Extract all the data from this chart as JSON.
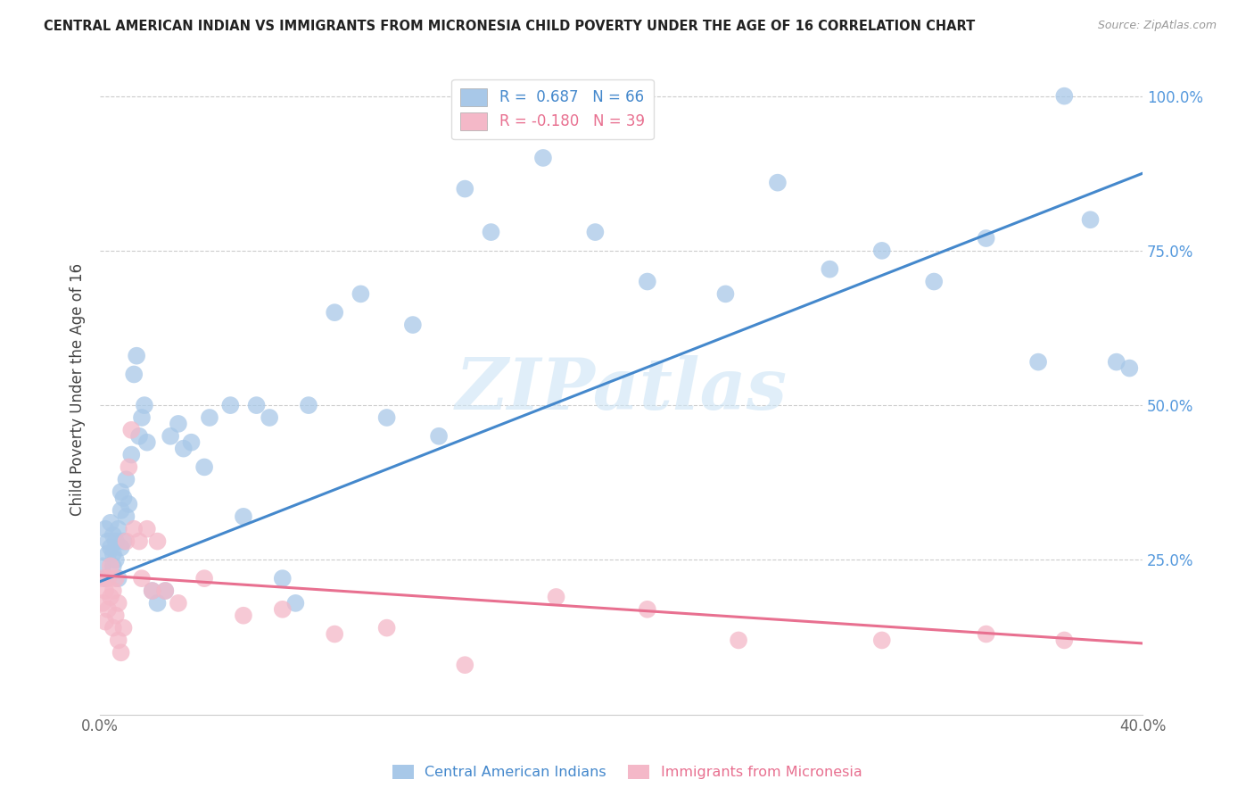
{
  "title": "CENTRAL AMERICAN INDIAN VS IMMIGRANTS FROM MICRONESIA CHILD POVERTY UNDER THE AGE OF 16 CORRELATION CHART",
  "source": "Source: ZipAtlas.com",
  "ylabel": "Child Poverty Under the Age of 16",
  "xlim": [
    0.0,
    0.4
  ],
  "ylim": [
    0.0,
    1.05
  ],
  "xticks": [
    0.0,
    0.1,
    0.2,
    0.3,
    0.4
  ],
  "xticklabels": [
    "0.0%",
    "",
    "",
    "",
    "40.0%"
  ],
  "ytick_positions": [
    0.0,
    0.25,
    0.5,
    0.75,
    1.0
  ],
  "yticklabels_right": [
    "",
    "25.0%",
    "50.0%",
    "75.0%",
    "100.0%"
  ],
  "R_blue": "0.687",
  "N_blue": 66,
  "R_pink": "-0.180",
  "N_pink": 39,
  "legend_label_blue": "Central American Indians",
  "legend_label_pink": "Immigrants from Micronesia",
  "blue_color": "#a8c8e8",
  "pink_color": "#f4b8c8",
  "blue_line_color": "#4488cc",
  "pink_line_color": "#e87090",
  "watermark": "ZIPatlas",
  "background_color": "#ffffff",
  "blue_line_x0": 0.0,
  "blue_line_y0": 0.215,
  "blue_line_x1": 0.4,
  "blue_line_y1": 0.875,
  "pink_line_x0": 0.0,
  "pink_line_y0": 0.225,
  "pink_line_x1": 0.4,
  "pink_line_y1": 0.115,
  "blue_x": [
    0.001,
    0.002,
    0.002,
    0.003,
    0.003,
    0.004,
    0.004,
    0.005,
    0.005,
    0.005,
    0.006,
    0.006,
    0.007,
    0.007,
    0.008,
    0.008,
    0.008,
    0.009,
    0.009,
    0.01,
    0.01,
    0.011,
    0.012,
    0.013,
    0.014,
    0.015,
    0.016,
    0.017,
    0.018,
    0.02,
    0.022,
    0.025,
    0.027,
    0.03,
    0.032,
    0.035,
    0.04,
    0.042,
    0.05,
    0.055,
    0.06,
    0.065,
    0.07,
    0.075,
    0.08,
    0.09,
    0.1,
    0.11,
    0.12,
    0.13,
    0.14,
    0.15,
    0.17,
    0.19,
    0.21,
    0.24,
    0.26,
    0.28,
    0.3,
    0.32,
    0.34,
    0.36,
    0.37,
    0.38,
    0.39,
    0.395
  ],
  "blue_y": [
    0.24,
    0.22,
    0.3,
    0.26,
    0.28,
    0.27,
    0.31,
    0.24,
    0.26,
    0.29,
    0.28,
    0.25,
    0.3,
    0.22,
    0.33,
    0.27,
    0.36,
    0.28,
    0.35,
    0.32,
    0.38,
    0.34,
    0.42,
    0.55,
    0.58,
    0.45,
    0.48,
    0.5,
    0.44,
    0.2,
    0.18,
    0.2,
    0.45,
    0.47,
    0.43,
    0.44,
    0.4,
    0.48,
    0.5,
    0.32,
    0.5,
    0.48,
    0.22,
    0.18,
    0.5,
    0.65,
    0.68,
    0.48,
    0.63,
    0.45,
    0.85,
    0.78,
    0.9,
    0.78,
    0.7,
    0.68,
    0.86,
    0.72,
    0.75,
    0.7,
    0.77,
    0.57,
    1.0,
    0.8,
    0.57,
    0.56
  ],
  "pink_x": [
    0.001,
    0.001,
    0.002,
    0.002,
    0.003,
    0.003,
    0.004,
    0.004,
    0.005,
    0.005,
    0.006,
    0.006,
    0.007,
    0.007,
    0.008,
    0.009,
    0.01,
    0.011,
    0.012,
    0.013,
    0.015,
    0.016,
    0.018,
    0.02,
    0.022,
    0.025,
    0.03,
    0.04,
    0.055,
    0.07,
    0.09,
    0.11,
    0.14,
    0.175,
    0.21,
    0.245,
    0.3,
    0.34,
    0.37
  ],
  "pink_y": [
    0.22,
    0.18,
    0.2,
    0.15,
    0.17,
    0.22,
    0.19,
    0.24,
    0.14,
    0.2,
    0.16,
    0.22,
    0.12,
    0.18,
    0.1,
    0.14,
    0.28,
    0.4,
    0.46,
    0.3,
    0.28,
    0.22,
    0.3,
    0.2,
    0.28,
    0.2,
    0.18,
    0.22,
    0.16,
    0.17,
    0.13,
    0.14,
    0.08,
    0.19,
    0.17,
    0.12,
    0.12,
    0.13,
    0.12
  ]
}
